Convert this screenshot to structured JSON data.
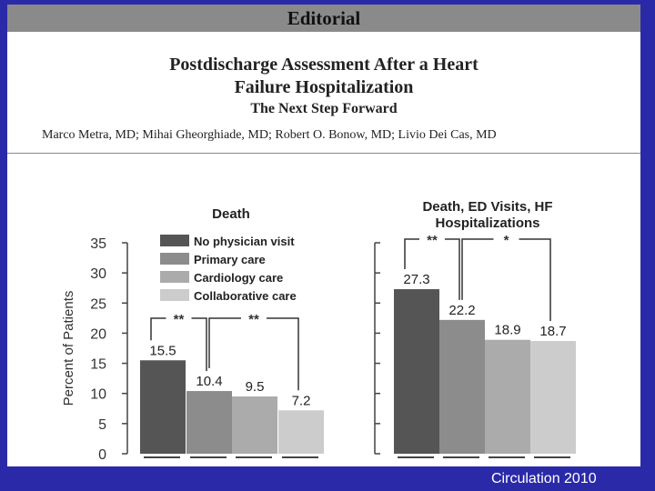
{
  "header": {
    "banner": "Editorial",
    "title_line1": "Postdischarge Assessment After a Heart",
    "title_line2": "Failure Hospitalization",
    "subtitle": "The Next Step Forward",
    "authors": "Marco Metra, MD; Mihai Gheorghiade, MD; Robert O. Bonow, MD; Livio Dei Cas, MD"
  },
  "footer": {
    "citation": "Circulation 2010"
  },
  "chart_data": {
    "type": "bar",
    "ylabel": "Percent of Patients",
    "ylim": [
      0,
      35
    ],
    "yticks": [
      0,
      5,
      10,
      15,
      20,
      25,
      30,
      35
    ],
    "grid": false,
    "legend_position": "top-left",
    "categories": [
      "Death",
      "Death, ED Visits, HF Hospitalizations"
    ],
    "category_titles": [
      [
        "Death"
      ],
      [
        "Death, ED Visits, HF",
        "Hospitalizations"
      ]
    ],
    "series": [
      {
        "name": "No physician visit",
        "color": "#555555",
        "values": [
          15.5,
          27.3
        ]
      },
      {
        "name": "Primary care",
        "color": "#8c8c8c",
        "values": [
          10.4,
          22.2
        ]
      },
      {
        "name": "Cardiology care",
        "color": "#ababab",
        "values": [
          9.5,
          18.9
        ]
      },
      {
        "name": "Collaborative care",
        "color": "#cccccc",
        "values": [
          7.2,
          18.7
        ]
      }
    ],
    "annotations": [
      {
        "panel": 0,
        "from_series": 0,
        "to_series": 1,
        "label": "**"
      },
      {
        "panel": 0,
        "from_series": 1,
        "to_series": 3,
        "label": "**"
      },
      {
        "panel": 1,
        "from_series": 0,
        "to_series": 1,
        "label": "**"
      },
      {
        "panel": 1,
        "from_series": 1,
        "to_series": 3,
        "label": "*"
      }
    ]
  }
}
